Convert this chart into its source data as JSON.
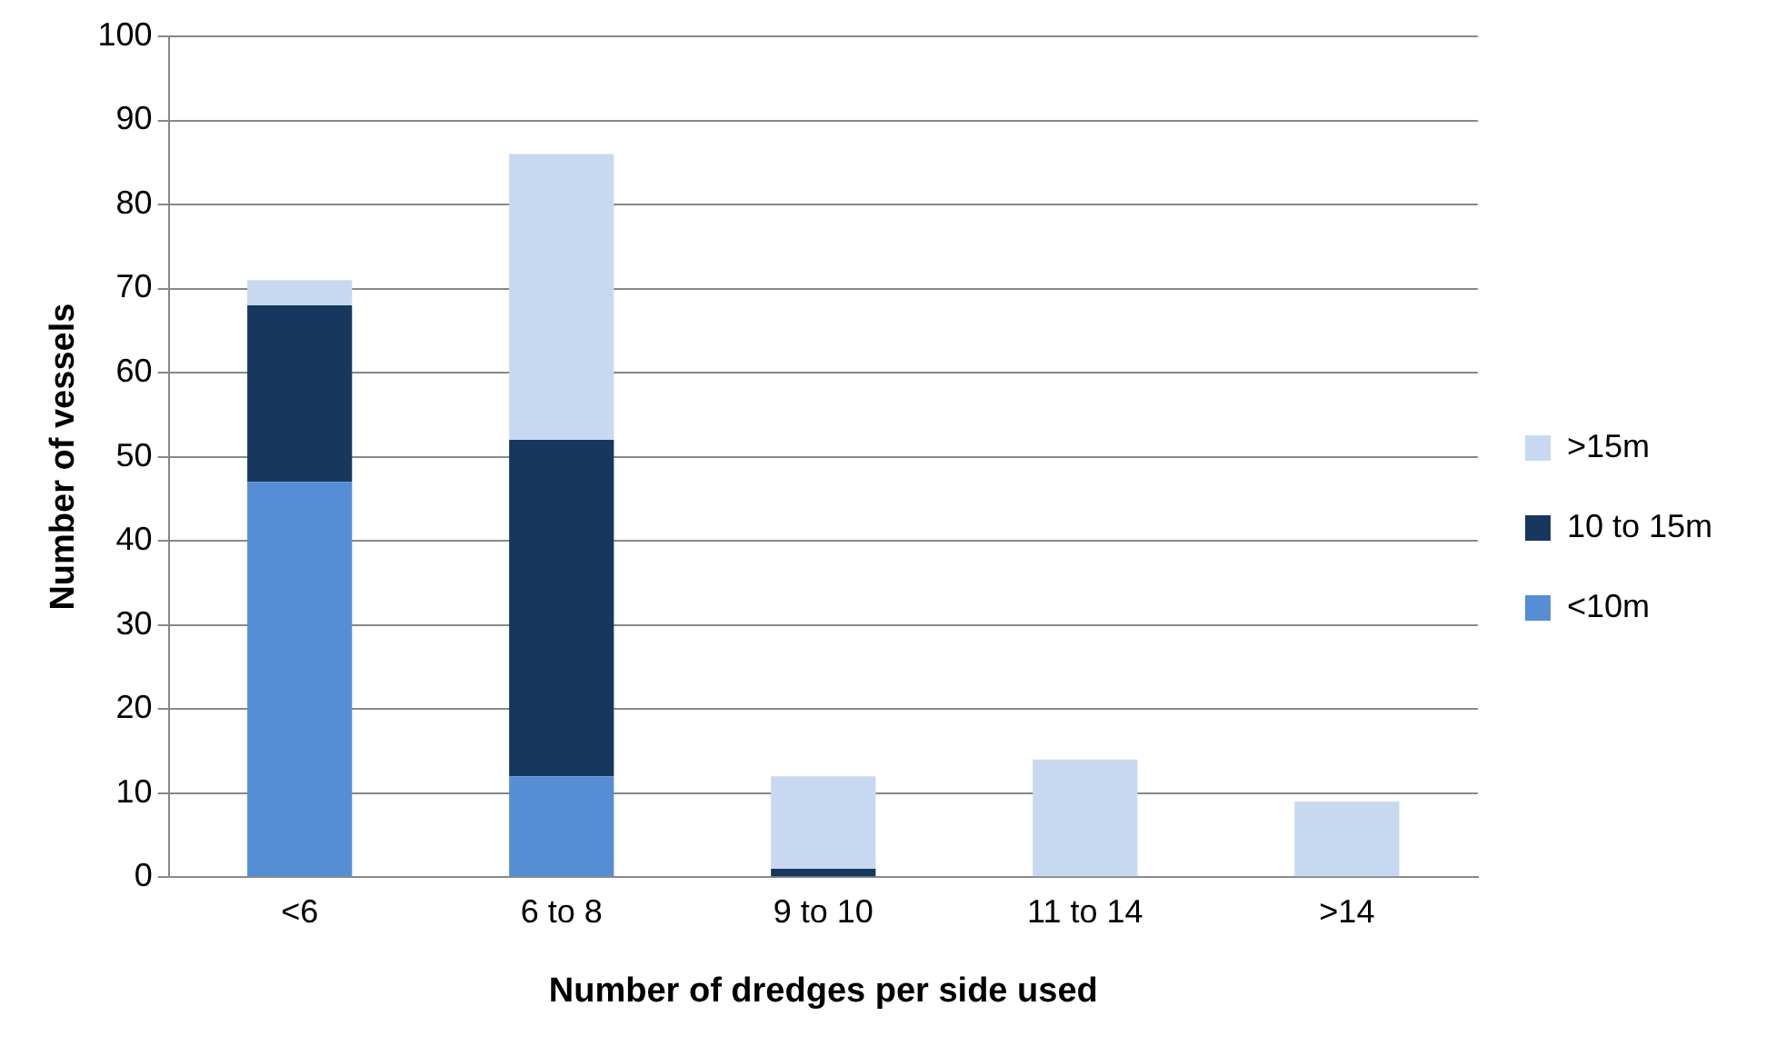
{
  "chart_data": {
    "type": "bar",
    "stacked": true,
    "xlabel": "Number of dredges per side used",
    "ylabel": "Number of vessels",
    "categories": [
      "<6",
      "6 to 8",
      "9 to 10",
      "11 to 14",
      ">14"
    ],
    "series": [
      {
        "name": "<10m",
        "color": "#558ed5",
        "values": [
          47,
          12,
          0,
          0,
          0
        ]
      },
      {
        "name": "10 to 15m",
        "color": "#17375e",
        "values": [
          21,
          40,
          1,
          0,
          0
        ]
      },
      {
        "name": ">15m",
        "color": "#c6d9f1",
        "values": [
          3,
          34,
          11,
          14,
          9
        ]
      }
    ],
    "ylim": [
      0,
      100
    ],
    "yticks": [
      0,
      10,
      20,
      30,
      40,
      50,
      60,
      70,
      80,
      90,
      100
    ],
    "grid": "y",
    "legend": "right"
  }
}
